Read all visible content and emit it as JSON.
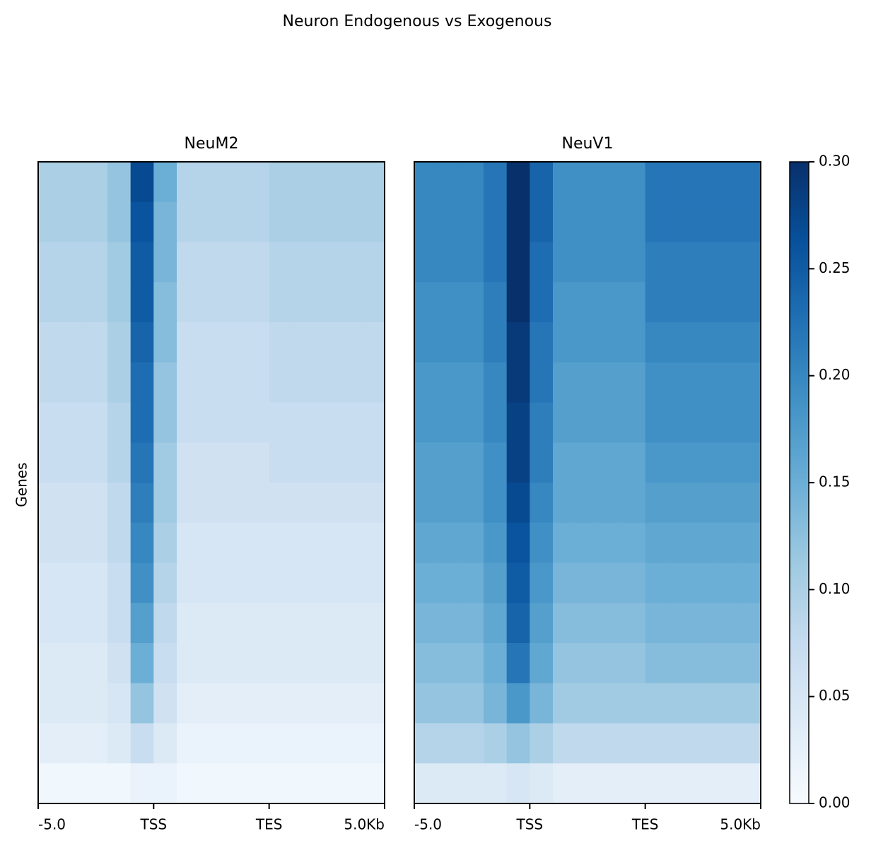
{
  "chart_data": {
    "type": "heatmap",
    "title": "Neuron Endogenous vs Exogenous",
    "ylabel": "Genes",
    "categories": [
      "-5.0",
      "TSS",
      "TES",
      "5.0Kb"
    ],
    "colormap": "Blues",
    "zlim": [
      0,
      0.3
    ],
    "zticks": [
      {
        "value": 0,
        "label": "0.00"
      },
      0.05,
      {
        "value": 0.1,
        "label": "0.10"
      },
      0.15,
      {
        "value": 0.2,
        "label": "0.20"
      },
      0.25,
      {
        "value": 0.3,
        "label": "0.30"
      }
    ],
    "panels": [
      {
        "title": "NeuM2",
        "values": [
          [
            0.1,
            0.1,
            0.1,
            0.12,
            0.27,
            0.15,
            0.09,
            0.09,
            0.09,
            0.09,
            0.1,
            0.1,
            0.1,
            0.1,
            0.1
          ],
          [
            0.1,
            0.1,
            0.1,
            0.12,
            0.26,
            0.14,
            0.09,
            0.09,
            0.09,
            0.09,
            0.1,
            0.1,
            0.1,
            0.1,
            0.1
          ],
          [
            0.09,
            0.09,
            0.09,
            0.11,
            0.25,
            0.14,
            0.08,
            0.08,
            0.08,
            0.08,
            0.09,
            0.09,
            0.09,
            0.09,
            0.09
          ],
          [
            0.09,
            0.09,
            0.09,
            0.11,
            0.25,
            0.13,
            0.08,
            0.08,
            0.08,
            0.08,
            0.09,
            0.09,
            0.09,
            0.09,
            0.09
          ],
          [
            0.08,
            0.08,
            0.08,
            0.1,
            0.24,
            0.13,
            0.07,
            0.07,
            0.07,
            0.07,
            0.08,
            0.08,
            0.08,
            0.08,
            0.08
          ],
          [
            0.08,
            0.08,
            0.08,
            0.1,
            0.23,
            0.12,
            0.07,
            0.07,
            0.07,
            0.07,
            0.08,
            0.08,
            0.08,
            0.08,
            0.08
          ],
          [
            0.07,
            0.07,
            0.07,
            0.09,
            0.23,
            0.12,
            0.07,
            0.07,
            0.07,
            0.07,
            0.07,
            0.07,
            0.07,
            0.07,
            0.07
          ],
          [
            0.07,
            0.07,
            0.07,
            0.09,
            0.22,
            0.11,
            0.06,
            0.06,
            0.06,
            0.06,
            0.07,
            0.07,
            0.07,
            0.07,
            0.07
          ],
          [
            0.06,
            0.06,
            0.06,
            0.08,
            0.21,
            0.11,
            0.06,
            0.06,
            0.06,
            0.06,
            0.06,
            0.06,
            0.06,
            0.06,
            0.06
          ],
          [
            0.06,
            0.06,
            0.06,
            0.08,
            0.2,
            0.1,
            0.05,
            0.05,
            0.05,
            0.05,
            0.05,
            0.05,
            0.05,
            0.05,
            0.05
          ],
          [
            0.05,
            0.05,
            0.05,
            0.07,
            0.19,
            0.09,
            0.05,
            0.05,
            0.05,
            0.05,
            0.05,
            0.05,
            0.05,
            0.05,
            0.05
          ],
          [
            0.05,
            0.05,
            0.05,
            0.07,
            0.17,
            0.08,
            0.04,
            0.04,
            0.04,
            0.04,
            0.04,
            0.04,
            0.04,
            0.04,
            0.04
          ],
          [
            0.04,
            0.04,
            0.04,
            0.06,
            0.15,
            0.07,
            0.04,
            0.04,
            0.04,
            0.04,
            0.04,
            0.04,
            0.04,
            0.04,
            0.04
          ],
          [
            0.04,
            0.04,
            0.04,
            0.05,
            0.12,
            0.06,
            0.03,
            0.03,
            0.03,
            0.03,
            0.03,
            0.03,
            0.03,
            0.03,
            0.03
          ],
          [
            0.03,
            0.03,
            0.03,
            0.04,
            0.07,
            0.04,
            0.02,
            0.02,
            0.02,
            0.02,
            0.02,
            0.02,
            0.02,
            0.02,
            0.02
          ],
          [
            0.01,
            0.01,
            0.01,
            0.01,
            0.02,
            0.02,
            0.01,
            0.01,
            0.01,
            0.01,
            0.01,
            0.01,
            0.01,
            0.01,
            0.01
          ]
        ]
      },
      {
        "title": "NeuV1",
        "values": [
          [
            0.2,
            0.2,
            0.2,
            0.22,
            0.3,
            0.24,
            0.19,
            0.19,
            0.19,
            0.19,
            0.22,
            0.22,
            0.22,
            0.22,
            0.22
          ],
          [
            0.2,
            0.2,
            0.2,
            0.22,
            0.3,
            0.24,
            0.19,
            0.19,
            0.19,
            0.19,
            0.22,
            0.22,
            0.22,
            0.22,
            0.22
          ],
          [
            0.2,
            0.2,
            0.2,
            0.22,
            0.3,
            0.23,
            0.19,
            0.19,
            0.19,
            0.19,
            0.21,
            0.21,
            0.21,
            0.21,
            0.21
          ],
          [
            0.19,
            0.19,
            0.19,
            0.21,
            0.3,
            0.23,
            0.18,
            0.18,
            0.18,
            0.18,
            0.21,
            0.21,
            0.21,
            0.21,
            0.21
          ],
          [
            0.19,
            0.19,
            0.19,
            0.21,
            0.29,
            0.22,
            0.18,
            0.18,
            0.18,
            0.18,
            0.2,
            0.2,
            0.2,
            0.2,
            0.2
          ],
          [
            0.18,
            0.18,
            0.18,
            0.2,
            0.29,
            0.22,
            0.17,
            0.17,
            0.17,
            0.17,
            0.19,
            0.19,
            0.19,
            0.19,
            0.19
          ],
          [
            0.18,
            0.18,
            0.18,
            0.2,
            0.28,
            0.21,
            0.17,
            0.17,
            0.17,
            0.17,
            0.19,
            0.19,
            0.19,
            0.19,
            0.19
          ],
          [
            0.17,
            0.17,
            0.17,
            0.19,
            0.28,
            0.21,
            0.16,
            0.16,
            0.16,
            0.16,
            0.18,
            0.18,
            0.18,
            0.18,
            0.18
          ],
          [
            0.17,
            0.17,
            0.17,
            0.19,
            0.27,
            0.2,
            0.16,
            0.16,
            0.16,
            0.16,
            0.17,
            0.17,
            0.17,
            0.17,
            0.17
          ],
          [
            0.16,
            0.16,
            0.16,
            0.18,
            0.26,
            0.19,
            0.15,
            0.15,
            0.15,
            0.15,
            0.16,
            0.16,
            0.16,
            0.16,
            0.16
          ],
          [
            0.15,
            0.15,
            0.15,
            0.17,
            0.25,
            0.18,
            0.14,
            0.14,
            0.14,
            0.14,
            0.15,
            0.15,
            0.15,
            0.15,
            0.15
          ],
          [
            0.14,
            0.14,
            0.14,
            0.16,
            0.24,
            0.17,
            0.13,
            0.13,
            0.13,
            0.13,
            0.14,
            0.14,
            0.14,
            0.14,
            0.14
          ],
          [
            0.13,
            0.13,
            0.13,
            0.15,
            0.22,
            0.16,
            0.12,
            0.12,
            0.12,
            0.12,
            0.13,
            0.13,
            0.13,
            0.13,
            0.13
          ],
          [
            0.12,
            0.12,
            0.12,
            0.14,
            0.18,
            0.14,
            0.11,
            0.11,
            0.11,
            0.11,
            0.11,
            0.11,
            0.11,
            0.11,
            0.11
          ],
          [
            0.09,
            0.09,
            0.09,
            0.1,
            0.12,
            0.1,
            0.08,
            0.08,
            0.08,
            0.08,
            0.08,
            0.08,
            0.08,
            0.08,
            0.08
          ],
          [
            0.04,
            0.04,
            0.04,
            0.04,
            0.05,
            0.04,
            0.03,
            0.03,
            0.03,
            0.03,
            0.03,
            0.03,
            0.03,
            0.03,
            0.03
          ]
        ]
      }
    ]
  }
}
